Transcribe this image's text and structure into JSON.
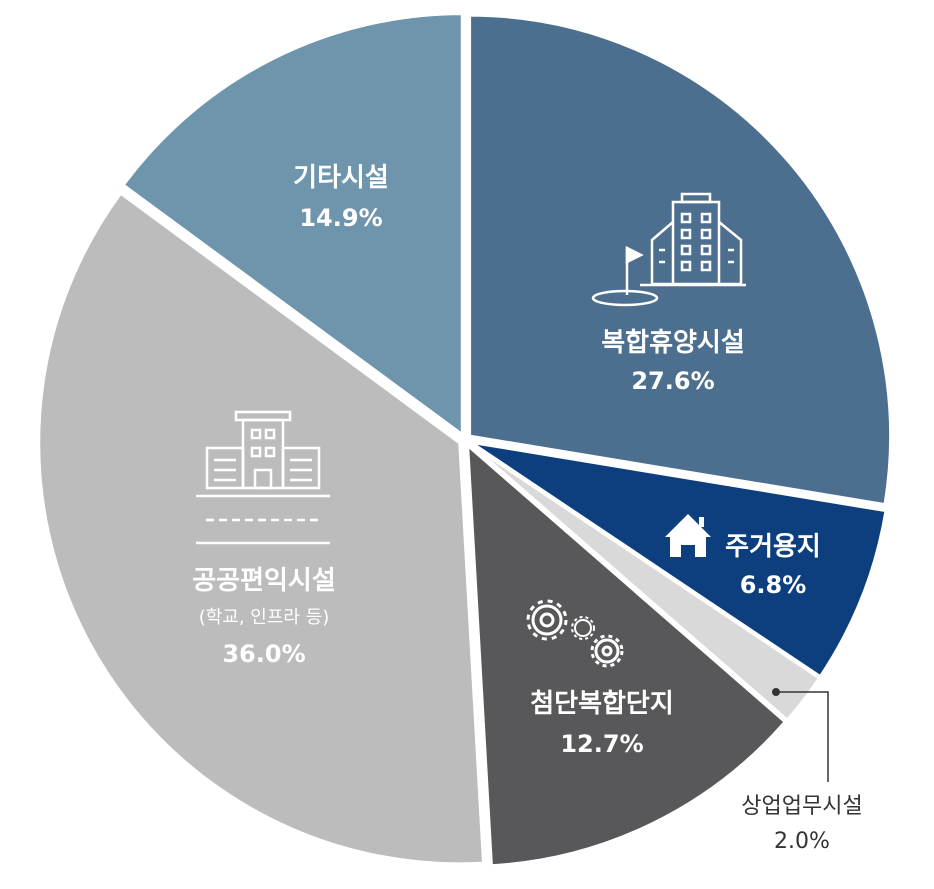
{
  "chart_data": {
    "type": "pie",
    "slices": [
      {
        "key": "s1",
        "label": "복합휴양시설",
        "value": 27.6,
        "pct_label": "27.6%",
        "color": "#4d6f8f",
        "icon": "golf-resort-building-icon"
      },
      {
        "key": "s2",
        "label": "주거용지",
        "value": 6.8,
        "pct_label": "6.8%",
        "color": "#0d3f7e",
        "icon": "house-icon"
      },
      {
        "key": "s3",
        "label": "상업업무시설",
        "value": 2.0,
        "pct_label": "2.0%",
        "color": "#d9d9d9",
        "icon": ""
      },
      {
        "key": "s4",
        "label": "첨단복합단지",
        "value": 12.7,
        "pct_label": "12.7%",
        "color": "#58585a",
        "icon": "gears-icon"
      },
      {
        "key": "s5",
        "label": "공공편익시설",
        "sublabel": "(학교, 인프라 등)",
        "value": 36.0,
        "pct_label": "36.0%",
        "color": "#bcbcbc",
        "icon": "school-building-icon"
      },
      {
        "key": "s6",
        "label": "기타시설",
        "value": 14.9,
        "pct_label": "14.9%",
        "color": "#6f95ad",
        "icon": ""
      }
    ]
  }
}
